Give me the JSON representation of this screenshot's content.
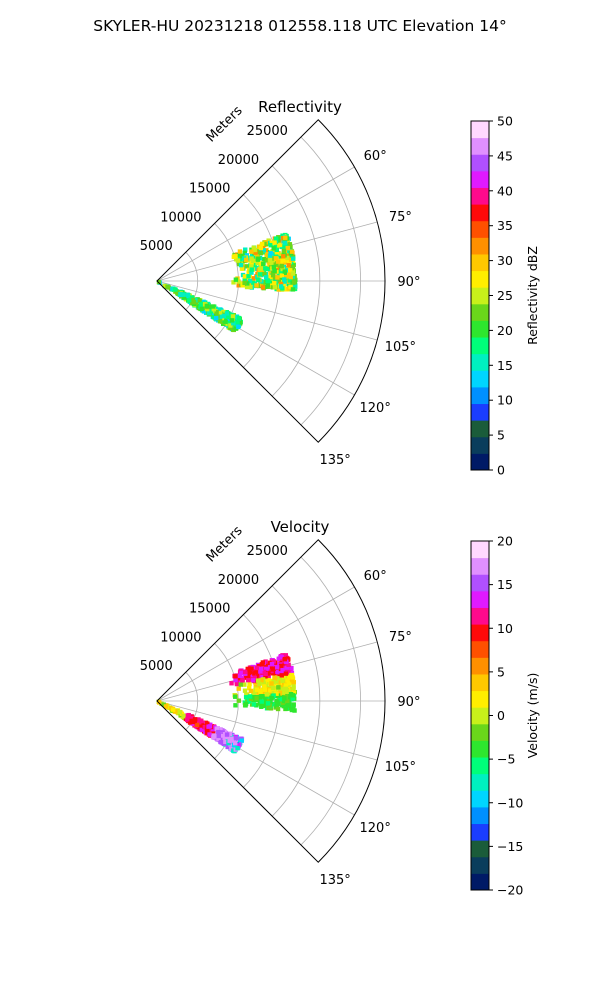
{
  "figure": {
    "suptitle": "SKYLER-HU  20231218  012558.118 UTC Elevation 14°"
  },
  "chart_data": [
    {
      "type": "scatter",
      "kind": "polar-radar-sector",
      "title": "Reflectivity",
      "radial_label": "Meters",
      "theta_range_deg": [
        45,
        135
      ],
      "r_max": 28000,
      "theta_ticks": [
        "60°",
        "75°",
        "90°",
        "105°",
        "120°",
        "135°"
      ],
      "theta_tick_values": [
        60,
        75,
        90,
        105,
        120,
        135
      ],
      "r_ticks": [
        "5000",
        "10000",
        "15000",
        "20000",
        "25000"
      ],
      "r_tick_values": [
        5000,
        10000,
        15000,
        20000,
        25000
      ],
      "grid": true,
      "colorbar": {
        "label": "Reflectivity dBZ",
        "range": [
          0,
          50
        ],
        "ticks": [
          "0",
          "5",
          "10",
          "15",
          "20",
          "25",
          "30",
          "35",
          "40",
          "45",
          "50"
        ],
        "tick_values": [
          0,
          5,
          10,
          15,
          20,
          25,
          30,
          35,
          40,
          45,
          50
        ],
        "colors": [
          "#001a66",
          "#0a3d5c",
          "#1a5c3a",
          "#1a3dff",
          "#0090ff",
          "#00d5ff",
          "#00f0c0",
          "#00ff7a",
          "#2ee62e",
          "#6ad61a",
          "#c8f01a",
          "#ffee00",
          "#ffc800",
          "#ff9000",
          "#ff5000",
          "#ff0a0a",
          "#ff0a8c",
          "#e01aff",
          "#b050ff",
          "#e090ff",
          "#ffd8ff"
        ]
      },
      "echoes": [
        {
          "region": "near-range band",
          "theta": [
            114,
            123
          ],
          "r": [
            0,
            11500
          ],
          "value_range": [
            12,
            26
          ]
        },
        {
          "region": "cell",
          "theta": [
            70,
            94
          ],
          "r": [
            9000,
            17000
          ],
          "value_range": [
            14,
            32
          ]
        }
      ]
    },
    {
      "type": "scatter",
      "kind": "polar-radar-sector",
      "title": "Velocity",
      "radial_label": "Meters",
      "theta_range_deg": [
        45,
        135
      ],
      "r_max": 28000,
      "theta_ticks": [
        "60°",
        "75°",
        "90°",
        "105°",
        "120°",
        "135°"
      ],
      "theta_tick_values": [
        60,
        75,
        90,
        105,
        120,
        135
      ],
      "r_ticks": [
        "5000",
        "10000",
        "15000",
        "20000",
        "25000"
      ],
      "r_tick_values": [
        5000,
        10000,
        15000,
        20000,
        25000
      ],
      "grid": true,
      "colorbar": {
        "label": "Velocity (m/s)",
        "range": [
          -20,
          20
        ],
        "ticks": [
          "−20",
          "−15",
          "−10",
          "−5",
          "0",
          "5",
          "10",
          "15",
          "20"
        ],
        "tick_values": [
          -20,
          -15,
          -10,
          -5,
          0,
          5,
          10,
          15,
          20
        ],
        "colors": [
          "#001a66",
          "#0a3d5c",
          "#1a5c3a",
          "#1a3dff",
          "#0090ff",
          "#00d5ff",
          "#00f0c0",
          "#00ff7a",
          "#2ee62e",
          "#6ad61a",
          "#c8f01a",
          "#ffee00",
          "#ffc800",
          "#ff9000",
          "#ff5000",
          "#ff0a0a",
          "#ff0a8c",
          "#e01aff",
          "#b050ff",
          "#e090ff",
          "#ffd8ff"
        ]
      },
      "echoes": [
        {
          "region": "near-range band",
          "theta": [
            114,
            123
          ],
          "r": [
            0,
            11500
          ],
          "value_range": [
            -12,
            18
          ]
        },
        {
          "region": "cell",
          "theta": [
            70,
            94
          ],
          "r": [
            9000,
            17000
          ],
          "value_range": [
            -6,
            14
          ]
        }
      ]
    }
  ]
}
